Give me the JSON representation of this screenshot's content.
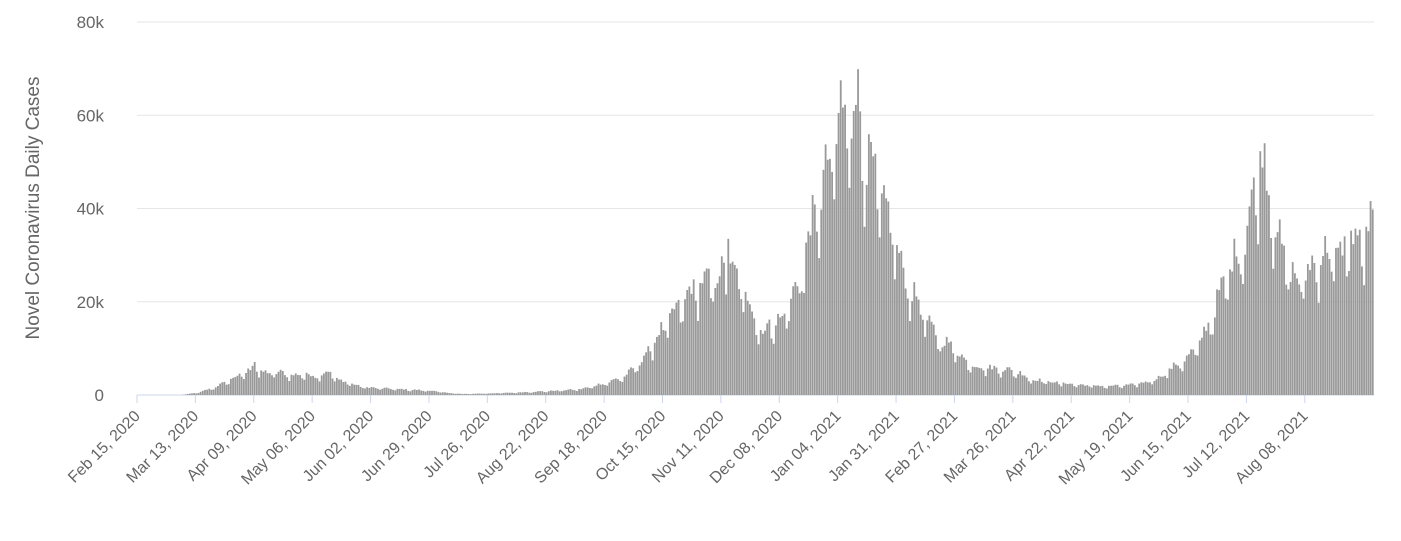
{
  "chart_data": {
    "type": "bar",
    "title": "",
    "ylabel": "Novel Coronavirus Daily Cases",
    "xlabel": "",
    "ylim": [
      0,
      80000
    ],
    "yticks": [
      {
        "value": 0,
        "label": "0"
      },
      {
        "value": 20000,
        "label": "20k"
      },
      {
        "value": 40000,
        "label": "40k"
      },
      {
        "value": 60000,
        "label": "60k"
      },
      {
        "value": 80000,
        "label": "80k"
      }
    ],
    "xticks": [
      {
        "day": 0,
        "label": "Feb 15, 2020"
      },
      {
        "day": 27,
        "label": "Mar 13, 2020"
      },
      {
        "day": 54,
        "label": "Apr 09, 2020"
      },
      {
        "day": 81,
        "label": "May 06, 2020"
      },
      {
        "day": 108,
        "label": "Jun 02, 2020"
      },
      {
        "day": 135,
        "label": "Jun 29, 2020"
      },
      {
        "day": 162,
        "label": "Jul 26, 2020"
      },
      {
        "day": 189,
        "label": "Aug 22, 2020"
      },
      {
        "day": 216,
        "label": "Sep 18, 2020"
      },
      {
        "day": 243,
        "label": "Oct 15, 2020"
      },
      {
        "day": 270,
        "label": "Nov 11, 2020"
      },
      {
        "day": 297,
        "label": "Dec 08, 2020"
      },
      {
        "day": 324,
        "label": "Jan 04, 2021"
      },
      {
        "day": 351,
        "label": "Jan 31, 2021"
      },
      {
        "day": 378,
        "label": "Feb 27, 2021"
      },
      {
        "day": 405,
        "label": "Mar 26, 2021"
      },
      {
        "day": 432,
        "label": "Apr 22, 2021"
      },
      {
        "day": 459,
        "label": "May 19, 2021"
      },
      {
        "day": 486,
        "label": "Jun 15, 2021"
      },
      {
        "day": 513,
        "label": "Jul 12, 2021"
      },
      {
        "day": 540,
        "label": "Aug 08, 2021"
      }
    ],
    "grid": true,
    "legend": "none",
    "bar_color": "#999999",
    "anchors": [
      [
        0,
        0
      ],
      [
        20,
        0
      ],
      [
        28,
        500
      ],
      [
        35,
        1500
      ],
      [
        40,
        2500
      ],
      [
        44,
        3500
      ],
      [
        48,
        4200
      ],
      [
        52,
        5200
      ],
      [
        54,
        7000
      ],
      [
        56,
        4800
      ],
      [
        60,
        4500
      ],
      [
        66,
        4600
      ],
      [
        72,
        4000
      ],
      [
        78,
        4300
      ],
      [
        82,
        3800
      ],
      [
        88,
        4800
      ],
      [
        93,
        3000
      ],
      [
        98,
        2500
      ],
      [
        102,
        1800
      ],
      [
        108,
        1500
      ],
      [
        120,
        1200
      ],
      [
        135,
        900
      ],
      [
        142,
        500
      ],
      [
        150,
        200
      ],
      [
        160,
        300
      ],
      [
        172,
        450
      ],
      [
        190,
        800
      ],
      [
        205,
        1200
      ],
      [
        212,
        2000
      ],
      [
        218,
        2700
      ],
      [
        225,
        3800
      ],
      [
        232,
        6500
      ],
      [
        238,
        10500
      ],
      [
        244,
        14500
      ],
      [
        250,
        18000
      ],
      [
        256,
        21500
      ],
      [
        262,
        23500
      ],
      [
        268,
        24000
      ],
      [
        273,
        26500
      ],
      [
        278,
        23000
      ],
      [
        283,
        19000
      ],
      [
        287,
        14000
      ],
      [
        290,
        13000
      ],
      [
        294,
        15500
      ],
      [
        298,
        15000
      ],
      [
        302,
        20500
      ],
      [
        306,
        22500
      ],
      [
        310,
        33000
      ],
      [
        314,
        38000
      ],
      [
        318,
        45000
      ],
      [
        322,
        52000
      ],
      [
        327,
        57000
      ],
      [
        331,
        62000
      ],
      [
        334,
        58000
      ],
      [
        337,
        48000
      ],
      [
        341,
        45000
      ],
      [
        345,
        38000
      ],
      [
        349,
        35000
      ],
      [
        353,
        26000
      ],
      [
        357,
        22000
      ],
      [
        362,
        18000
      ],
      [
        367,
        13500
      ],
      [
        372,
        11000
      ],
      [
        377,
        10000
      ],
      [
        382,
        7200
      ],
      [
        388,
        5800
      ],
      [
        395,
        5500
      ],
      [
        402,
        5200
      ],
      [
        408,
        4500
      ],
      [
        413,
        3200
      ],
      [
        420,
        2800
      ],
      [
        428,
        2400
      ],
      [
        438,
        2000
      ],
      [
        448,
        1800
      ],
      [
        458,
        2000
      ],
      [
        465,
        2500
      ],
      [
        472,
        3500
      ],
      [
        478,
        5500
      ],
      [
        485,
        7500
      ],
      [
        490,
        10000
      ],
      [
        495,
        14500
      ],
      [
        498,
        18000
      ],
      [
        503,
        24000
      ],
      [
        508,
        29000
      ],
      [
        512,
        32000
      ],
      [
        516,
        42000
      ],
      [
        520,
        50000
      ],
      [
        522,
        44000
      ],
      [
        525,
        38000
      ],
      [
        529,
        29000
      ],
      [
        532,
        27000
      ],
      [
        536,
        23000
      ],
      [
        540,
        25000
      ],
      [
        546,
        28000
      ],
      [
        552,
        30000
      ],
      [
        556,
        28000
      ],
      [
        560,
        33000
      ],
      [
        566,
        31000
      ],
      [
        570,
        35000
      ]
    ]
  }
}
